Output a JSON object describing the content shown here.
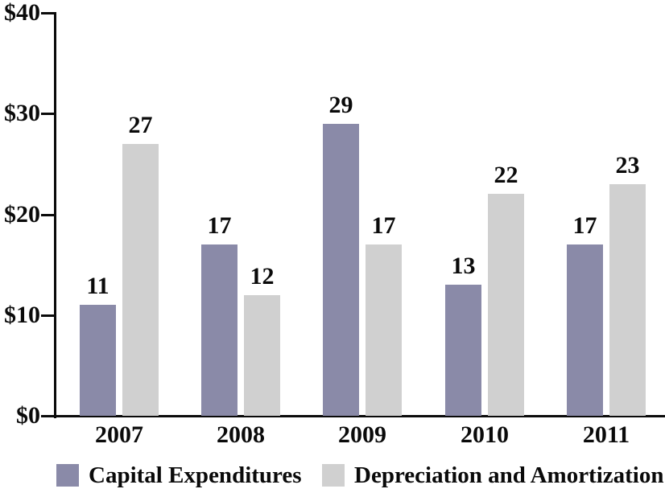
{
  "chart_data": {
    "type": "bar",
    "categories": [
      "2007",
      "2008",
      "2009",
      "2010",
      "2011"
    ],
    "series": [
      {
        "name": "Capital Expenditures",
        "color": "#8a8aa8",
        "values": [
          11,
          17,
          29,
          13,
          17
        ]
      },
      {
        "name": "Depreciation and Amortization",
        "color": "#d0d0d0",
        "values": [
          27,
          12,
          17,
          22,
          23
        ]
      }
    ],
    "title": "",
    "xlabel": "",
    "ylabel": "",
    "ylim": [
      0,
      40
    ],
    "ytick_interval": 10,
    "ytick_labels": [
      "$0",
      "$10",
      "$20",
      "$30",
      "$40"
    ],
    "bar_value_labels": true,
    "grid": false,
    "legend_position": "bottom"
  },
  "colors": {
    "axis": "#0a0a0a",
    "text": "#0a0a0a",
    "background": "#ffffff"
  }
}
